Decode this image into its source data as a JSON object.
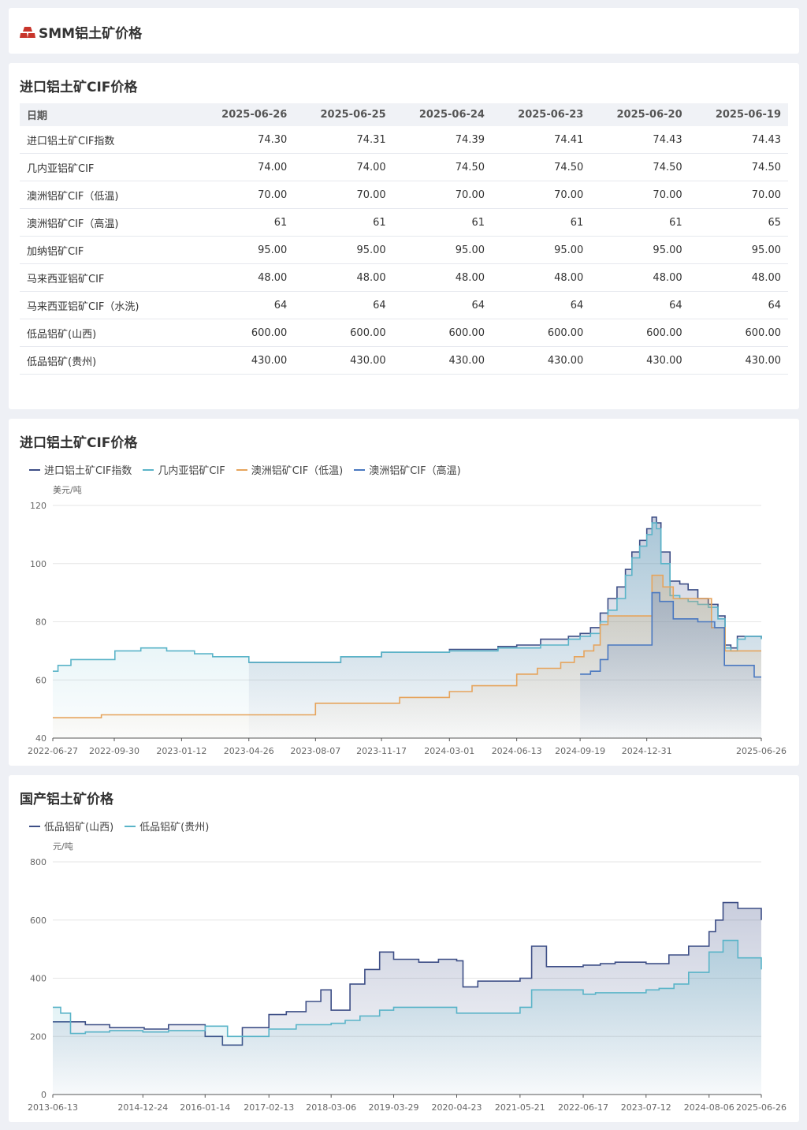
{
  "app_title": "SMM铝土矿价格",
  "colors": {
    "dark_blue": "#3d4e86",
    "teal": "#5ab4c8",
    "orange": "#e6a45c",
    "steel_blue": "#4a78c0",
    "logo_red": "#c8352b"
  },
  "table_section": {
    "title": "进口铝土矿CIF价格",
    "header_label": "日期",
    "dates": [
      "2025-06-26",
      "2025-06-25",
      "2025-06-24",
      "2025-06-23",
      "2025-06-20",
      "2025-06-19"
    ],
    "rows": [
      {
        "name": "进口铝土矿CIF指数",
        "values": [
          "74.30",
          "74.31",
          "74.39",
          "74.41",
          "74.43",
          "74.43"
        ]
      },
      {
        "name": "几内亚铝矿CIF",
        "values": [
          "74.00",
          "74.00",
          "74.50",
          "74.50",
          "74.50",
          "74.50"
        ]
      },
      {
        "name": "澳洲铝矿CIF（低温)",
        "values": [
          "70.00",
          "70.00",
          "70.00",
          "70.00",
          "70.00",
          "70.00"
        ]
      },
      {
        "name": "澳洲铝矿CIF（高温)",
        "values": [
          "61",
          "61",
          "61",
          "61",
          "61",
          "65"
        ]
      },
      {
        "name": "加纳铝矿CIF",
        "values": [
          "95.00",
          "95.00",
          "95.00",
          "95.00",
          "95.00",
          "95.00"
        ]
      },
      {
        "name": "马来西亚铝矿CIF",
        "values": [
          "48.00",
          "48.00",
          "48.00",
          "48.00",
          "48.00",
          "48.00"
        ]
      },
      {
        "name": "马来西亚铝矿CIF（水洗)",
        "values": [
          "64",
          "64",
          "64",
          "64",
          "64",
          "64"
        ]
      },
      {
        "name": "低品铝矿(山西)",
        "values": [
          "600.00",
          "600.00",
          "600.00",
          "600.00",
          "600.00",
          "600.00"
        ]
      },
      {
        "name": "低品铝矿(贵州)",
        "values": [
          "430.00",
          "430.00",
          "430.00",
          "430.00",
          "430.00",
          "430.00"
        ]
      }
    ]
  },
  "chart1_section": {
    "title": "进口铝土矿CIF价格"
  },
  "chart2_section": {
    "title": "国产铝土矿价格"
  },
  "chart_data": [
    {
      "type": "area",
      "title": "进口铝土矿CIF价格",
      "ylabel": "美元/吨",
      "ylim": [
        40,
        120
      ],
      "yticks": [
        40,
        60,
        80,
        100,
        120
      ],
      "xlim": [
        "2022-06-27",
        "2025-06-26"
      ],
      "xticks": [
        "2022-06-27",
        "2022-09-30",
        "2023-01-12",
        "2023-04-26",
        "2023-08-07",
        "2023-11-17",
        "2024-03-01",
        "2024-06-13",
        "2024-09-19",
        "2024-12-31",
        "2025-06-26"
      ],
      "grid": true,
      "legend_position": "top-left",
      "series": [
        {
          "name": "进口铝土矿CIF指数",
          "color": "#3d4e86",
          "x": [
            "2023-04-26",
            "2023-08-07",
            "2023-09-15",
            "2023-11-17",
            "2024-03-01",
            "2024-05-15",
            "2024-06-13",
            "2024-07-20",
            "2024-09-01",
            "2024-09-19",
            "2024-10-05",
            "2024-10-20",
            "2024-11-01",
            "2024-11-15",
            "2024-11-28",
            "2024-12-08",
            "2024-12-20",
            "2024-12-31",
            "2025-01-08",
            "2025-01-15",
            "2025-01-22",
            "2025-02-05",
            "2025-02-20",
            "2025-03-05",
            "2025-03-20",
            "2025-04-05",
            "2025-04-20",
            "2025-05-01",
            "2025-05-10",
            "2025-05-20",
            "2025-06-01",
            "2025-06-26"
          ],
          "values": [
            66,
            66,
            68,
            69.5,
            70.5,
            71.5,
            72,
            74,
            75,
            76,
            78,
            83,
            88,
            92,
            98,
            104,
            108,
            112,
            116,
            114,
            104,
            94,
            93,
            91,
            88,
            86,
            82,
            72,
            71,
            75,
            75,
            74.3
          ]
        },
        {
          "name": "几内亚铝矿CIF",
          "color": "#5ab4c8",
          "x": [
            "2022-06-27",
            "2022-07-05",
            "2022-07-25",
            "2022-08-20",
            "2022-10-01",
            "2022-11-10",
            "2022-12-20",
            "2023-02-01",
            "2023-03-01",
            "2023-04-26",
            "2023-08-07",
            "2023-09-15",
            "2023-11-17",
            "2024-03-01",
            "2024-05-15",
            "2024-06-13",
            "2024-07-20",
            "2024-09-01",
            "2024-09-19",
            "2024-10-05",
            "2024-10-20",
            "2024-11-01",
            "2024-11-15",
            "2024-11-28",
            "2024-12-08",
            "2024-12-20",
            "2024-12-31",
            "2025-01-08",
            "2025-01-15",
            "2025-01-22",
            "2025-02-05",
            "2025-02-20",
            "2025-03-05",
            "2025-03-20",
            "2025-04-05",
            "2025-04-20",
            "2025-05-01",
            "2025-05-10",
            "2025-05-20",
            "2025-06-01",
            "2025-06-26"
          ],
          "values": [
            63,
            65,
            67,
            67,
            70,
            71,
            70,
            69,
            68,
            66,
            66,
            68,
            69.5,
            70,
            71,
            71,
            72,
            74,
            75,
            76,
            80,
            84,
            88,
            96,
            102,
            106,
            110,
            114,
            112,
            100,
            89,
            88,
            87,
            86,
            85,
            81,
            71,
            70,
            74,
            75,
            74
          ]
        },
        {
          "name": "澳洲铝矿CIF（低温)",
          "color": "#e6a45c",
          "x": [
            "2022-06-27",
            "2022-09-10",
            "2023-04-26",
            "2023-08-07",
            "2023-11-17",
            "2023-12-15",
            "2024-03-01",
            "2024-04-05",
            "2024-06-13",
            "2024-07-15",
            "2024-08-20",
            "2024-09-10",
            "2024-09-25",
            "2024-10-10",
            "2024-10-20",
            "2024-11-01",
            "2025-01-08",
            "2025-01-25",
            "2025-02-10",
            "2025-04-10",
            "2025-05-01",
            "2025-06-26"
          ],
          "values": [
            47,
            48,
            48,
            52,
            52,
            54,
            56,
            58,
            62,
            64,
            66,
            68,
            70,
            72,
            79,
            82,
            96,
            92,
            88,
            78,
            70,
            70
          ]
        },
        {
          "name": "澳洲铝矿CIF（高温)",
          "color": "#4a78c0",
          "x": [
            "2024-09-19",
            "2024-10-05",
            "2024-10-20",
            "2024-11-01",
            "2024-11-20",
            "2025-01-08",
            "2025-01-20",
            "2025-02-10",
            "2025-03-20",
            "2025-04-15",
            "2025-04-30",
            "2025-05-25",
            "2025-06-15",
            "2025-06-26"
          ],
          "values": [
            62,
            63,
            67,
            72,
            72,
            90,
            87,
            81,
            80,
            78,
            65,
            65,
            61,
            61
          ]
        }
      ]
    },
    {
      "type": "area",
      "title": "国产铝土矿价格",
      "ylabel": "元/吨",
      "ylim": [
        0,
        800
      ],
      "yticks": [
        0,
        200,
        400,
        600,
        800
      ],
      "xlim": [
        "2013-06-13",
        "2025-06-26"
      ],
      "xticks": [
        "2013-06-13",
        "2014-12-24",
        "2016-01-14",
        "2017-02-13",
        "2018-03-06",
        "2019-03-29",
        "2020-04-23",
        "2021-05-21",
        "2022-06-17",
        "2023-07-12",
        "2024-08-06",
        "2025-06-26"
      ],
      "grid": true,
      "legend_position": "top-left",
      "series": [
        {
          "name": "低品铝矿(山西)",
          "color": "#3d4e86",
          "x": [
            "2013-06-13",
            "2013-09-01",
            "2014-01-01",
            "2014-06-01",
            "2015-01-01",
            "2015-06-01",
            "2016-01-14",
            "2016-05-01",
            "2016-09-01",
            "2017-02-13",
            "2017-06-01",
            "2017-10-01",
            "2018-01-01",
            "2018-03-06",
            "2018-07-01",
            "2018-10-01",
            "2019-01-01",
            "2019-03-29",
            "2019-09-01",
            "2020-01-01",
            "2020-04-23",
            "2020-06-01",
            "2020-09-01",
            "2021-05-21",
            "2021-08-01",
            "2021-11-01",
            "2022-06-17",
            "2022-10-01",
            "2023-01-01",
            "2023-07-12",
            "2023-12-01",
            "2024-04-01",
            "2024-08-06",
            "2024-09-15",
            "2024-11-01",
            "2025-02-01",
            "2025-06-26"
          ],
          "values": [
            250,
            250,
            240,
            230,
            225,
            240,
            200,
            170,
            230,
            275,
            285,
            320,
            360,
            290,
            380,
            430,
            490,
            465,
            455,
            465,
            460,
            370,
            390,
            400,
            510,
            440,
            445,
            450,
            455,
            450,
            480,
            510,
            560,
            600,
            660,
            640,
            600
          ]
        },
        {
          "name": "低品铝矿(贵州)",
          "color": "#5ab4c8",
          "x": [
            "2013-06-13",
            "2013-08-01",
            "2013-10-01",
            "2014-01-01",
            "2014-06-01",
            "2014-12-24",
            "2015-06-01",
            "2016-01-14",
            "2016-06-01",
            "2017-02-13",
            "2017-08-01",
            "2018-03-06",
            "2018-06-01",
            "2018-09-01",
            "2019-01-01",
            "2019-03-29",
            "2019-09-01",
            "2020-04-23",
            "2020-09-01",
            "2021-05-21",
            "2021-08-01",
            "2022-06-17",
            "2022-09-01",
            "2023-07-12",
            "2023-10-01",
            "2024-01-01",
            "2024-04-01",
            "2024-08-06",
            "2024-11-01",
            "2025-02-01",
            "2025-06-26"
          ],
          "values": [
            300,
            280,
            210,
            215,
            220,
            215,
            220,
            235,
            200,
            225,
            240,
            245,
            255,
            270,
            290,
            300,
            300,
            280,
            280,
            300,
            360,
            345,
            350,
            360,
            365,
            380,
            420,
            490,
            530,
            470,
            430
          ]
        }
      ]
    }
  ]
}
